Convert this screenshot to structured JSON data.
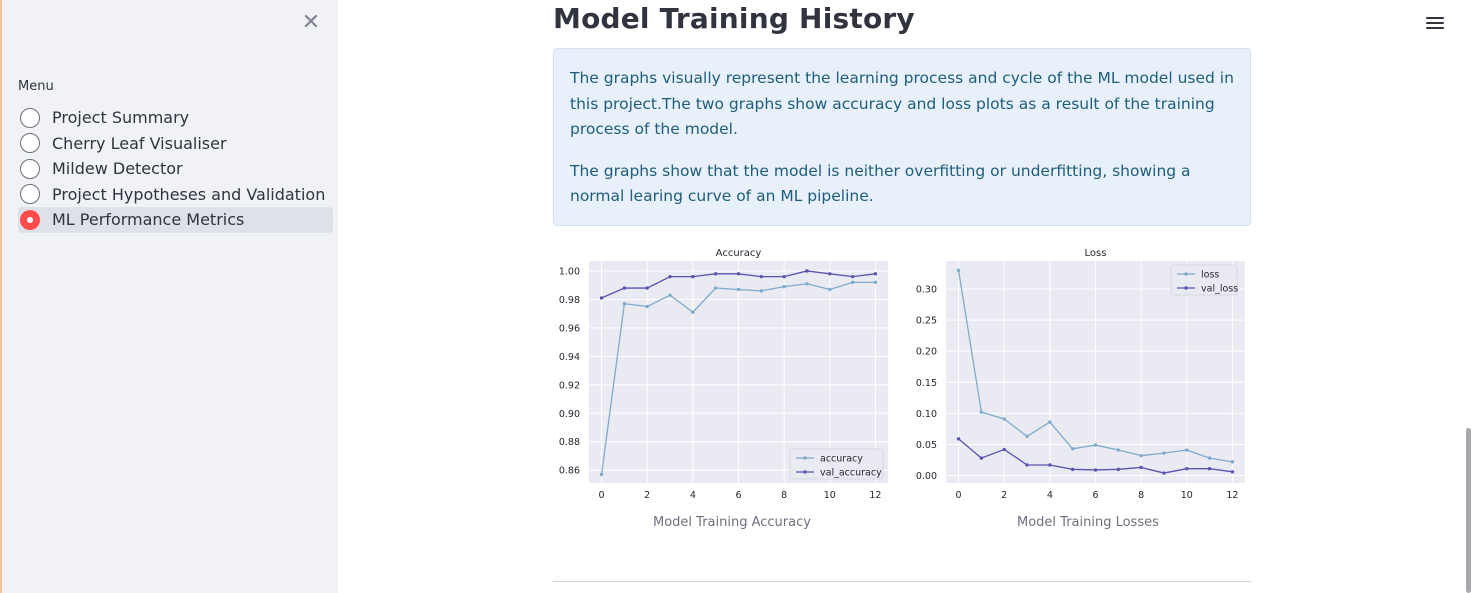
{
  "sidebar": {
    "close_icon": "close-icon",
    "menu_label": "Menu",
    "items": [
      {
        "label": "Project Summary",
        "selected": false
      },
      {
        "label": "Cherry Leaf Visualiser",
        "selected": false
      },
      {
        "label": "Mildew Detector",
        "selected": false
      },
      {
        "label": "Project Hypotheses and Validation",
        "selected": false
      },
      {
        "label": "ML Performance Metrics",
        "selected": true
      }
    ],
    "accent_color": "#ff4b4b"
  },
  "header": {
    "title": "Model Training History",
    "menu_icon": "hamburger-menu-icon"
  },
  "info": {
    "paragraph1": "The graphs visually represent the learning process and cycle of the ML model used in this project.The two graphs show accuracy and loss plots as a result of the training process of the model.",
    "paragraph2": "The graphs show that the model is neither overfitting or underfitting, showing a normal learing curve of an ML pipeline."
  },
  "captions": {
    "accuracy": "Model Training Accuracy",
    "losses": "Model Training Losses"
  },
  "chart_data": [
    {
      "type": "line",
      "title": "Accuracy",
      "xlabel": "",
      "ylabel": "",
      "x": [
        0,
        1,
        2,
        3,
        4,
        5,
        6,
        7,
        8,
        9,
        10,
        11,
        12
      ],
      "xticks": [
        0,
        2,
        4,
        6,
        8,
        10,
        12
      ],
      "yticks": [
        0.86,
        0.88,
        0.9,
        0.92,
        0.94,
        0.96,
        0.98,
        1.0
      ],
      "xlim": [
        -0.55,
        12.55
      ],
      "ylim": [
        0.851,
        1.007
      ],
      "grid": true,
      "legend_position": "lower-right",
      "series": [
        {
          "name": "accuracy",
          "color": "#7eaacb",
          "values": [
            0.857,
            0.977,
            0.975,
            0.983,
            0.971,
            0.988,
            0.987,
            0.986,
            0.989,
            0.991,
            0.987,
            0.992,
            0.992
          ]
        },
        {
          "name": "val_accuracy",
          "color": "#5a53b0",
          "values": [
            0.981,
            0.988,
            0.988,
            0.996,
            0.996,
            0.998,
            0.998,
            0.996,
            0.996,
            1.0,
            0.998,
            0.996,
            0.998
          ]
        }
      ]
    },
    {
      "type": "line",
      "title": "Loss",
      "xlabel": "",
      "ylabel": "",
      "x": [
        0,
        1,
        2,
        3,
        4,
        5,
        6,
        7,
        8,
        9,
        10,
        11,
        12
      ],
      "xticks": [
        0,
        2,
        4,
        6,
        8,
        10,
        12
      ],
      "yticks": [
        0.0,
        0.05,
        0.1,
        0.15,
        0.2,
        0.25,
        0.3
      ],
      "xlim": [
        -0.55,
        12.55
      ],
      "ylim": [
        -0.012,
        0.345
      ],
      "grid": true,
      "legend_position": "upper-right",
      "series": [
        {
          "name": "loss",
          "color": "#7eaacb",
          "values": [
            0.33,
            0.102,
            0.091,
            0.063,
            0.086,
            0.043,
            0.049,
            0.041,
            0.032,
            0.036,
            0.041,
            0.028,
            0.022
          ]
        },
        {
          "name": "val_loss",
          "color": "#5a53b0",
          "values": [
            0.059,
            0.028,
            0.042,
            0.017,
            0.017,
            0.01,
            0.009,
            0.01,
            0.013,
            0.004,
            0.011,
            0.011,
            0.006
          ]
        }
      ]
    }
  ]
}
